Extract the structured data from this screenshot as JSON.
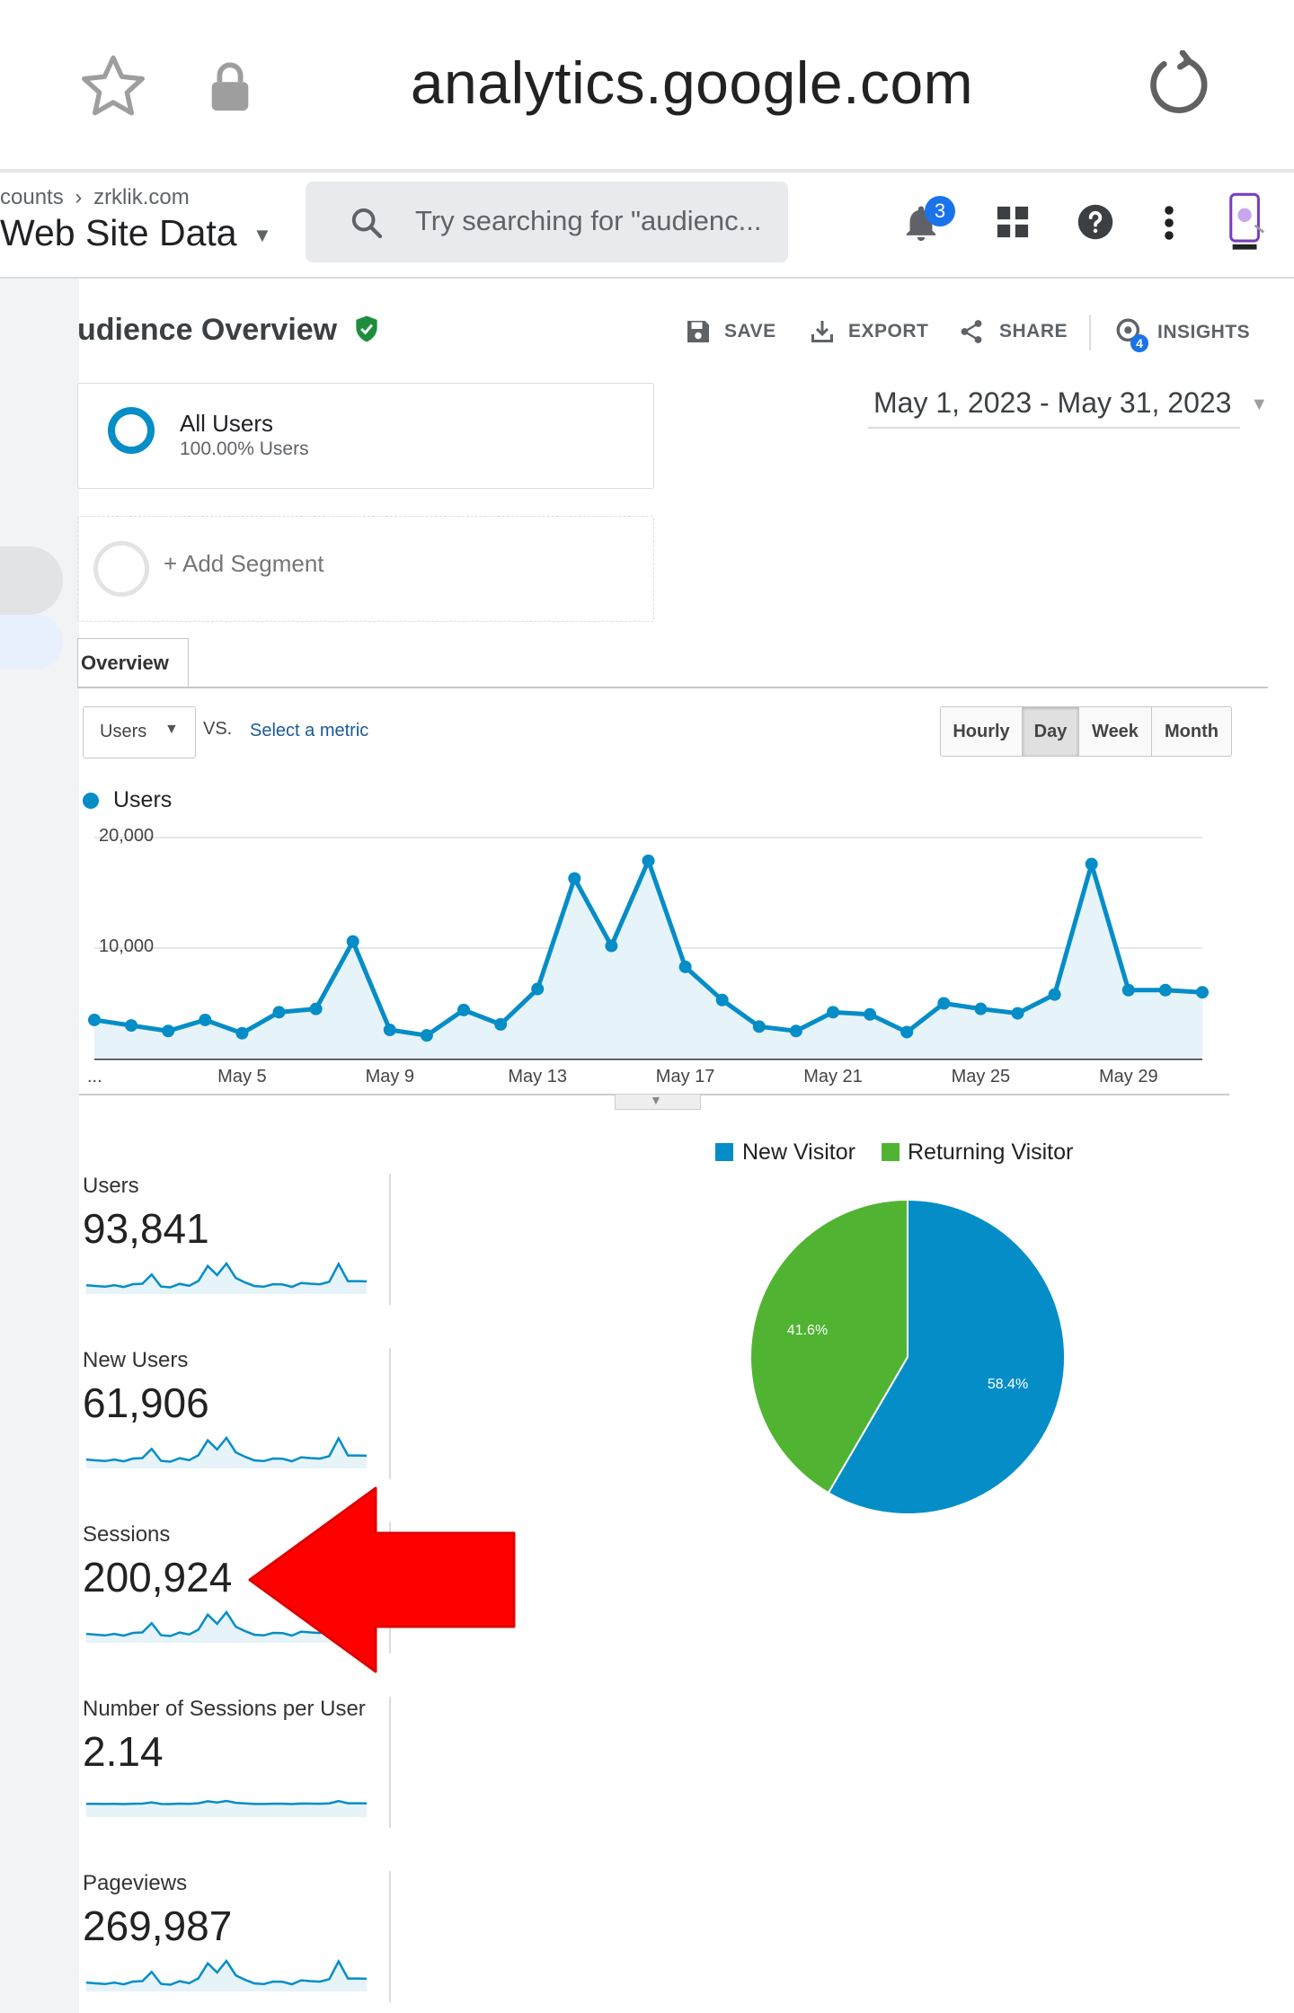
{
  "browser": {
    "url": "analytics.google.com",
    "icons": [
      "star-icon",
      "lock-icon",
      "reload-icon"
    ]
  },
  "header": {
    "breadcrumb_account": "counts",
    "breadcrumb_property": "zrklik.com",
    "view_name": "Web Site Data",
    "search_placeholder": "Try searching for \"audienc...",
    "notification_count": "3",
    "insights_count": "4",
    "accent_color": "#1a73e8"
  },
  "report": {
    "title": "udience Overview",
    "toolbar": {
      "save": "SAVE",
      "export": "EXPORT",
      "share": "SHARE",
      "insights": "INSIGHTS"
    },
    "segments": [
      {
        "name": "All Users",
        "detail": "100.00% Users"
      },
      {
        "name": "+ Add Segment"
      }
    ],
    "date_range": "May 1, 2023 - May 31, 2023",
    "tab": "Overview",
    "metric_selector": "Users",
    "vs_label": "VS.",
    "select_metric_link": "Select a metric",
    "granularity": [
      "Hourly",
      "Day",
      "Week",
      "Month"
    ],
    "granularity_selected": "Day"
  },
  "chart_data": [
    {
      "type": "area",
      "series": [
        {
          "name": "Users",
          "color": "#058dc7",
          "values": [
            3500,
            3000,
            2500,
            3500,
            2300,
            4200,
            4500,
            10600,
            2600,
            2100,
            4400,
            3100,
            6300,
            16300,
            10200,
            17900,
            8300,
            5300,
            2900,
            2500,
            4200,
            4000,
            2400,
            5000,
            4500,
            4100,
            5800,
            17600,
            6200,
            6200,
            6000
          ]
        }
      ],
      "x": [
        "May 1",
        "May 2",
        "May 3",
        "May 4",
        "May 5",
        "May 6",
        "May 7",
        "May 8",
        "May 9",
        "May 10",
        "May 11",
        "May 12",
        "May 13",
        "May 14",
        "May 15",
        "May 16",
        "May 17",
        "May 18",
        "May 19",
        "May 20",
        "May 21",
        "May 22",
        "May 23",
        "May 24",
        "May 25",
        "May 26",
        "May 27",
        "May 28",
        "May 29",
        "May 30",
        "May 31"
      ],
      "x_tick_labels": [
        "...",
        "May 5",
        "May 9",
        "May 13",
        "May 17",
        "May 21",
        "May 25",
        "May 29"
      ],
      "y_tick_labels": [
        "20,000",
        "10,000"
      ],
      "ylim": [
        0,
        20000
      ],
      "grid": true,
      "legend": "top-left"
    },
    {
      "type": "pie",
      "categories": [
        "New Visitor",
        "Returning Visitor"
      ],
      "values": [
        58.4,
        41.6
      ],
      "labels": [
        "58.4%",
        "41.6%"
      ],
      "colors": [
        "#058dc7",
        "#50b432"
      ],
      "legend": "top"
    }
  ],
  "metrics": [
    {
      "label": "Users",
      "value": "93,841",
      "sparkline": "spiky"
    },
    {
      "label": "New Users",
      "value": "61,906",
      "sparkline": "spiky"
    },
    {
      "label": "Sessions",
      "value": "200,924",
      "sparkline": "spiky"
    },
    {
      "label": "Number of Sessions per User",
      "value": "2.14",
      "sparkline": "flat"
    },
    {
      "label": "Pageviews",
      "value": "269,987",
      "sparkline": "spiky"
    }
  ],
  "annotation": {
    "color": "#ff0000",
    "points_to": "Sessions"
  }
}
